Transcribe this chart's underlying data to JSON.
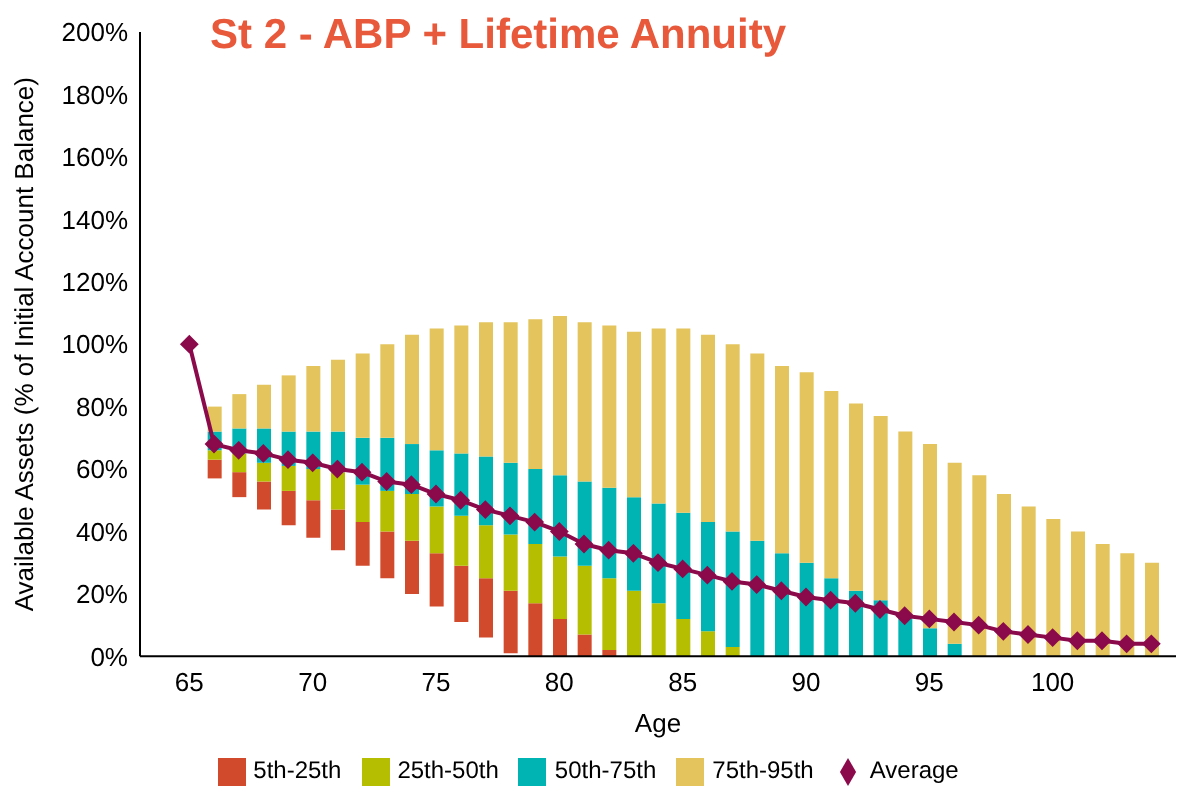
{
  "chart_data": {
    "type": "bar",
    "title": "St 2 - ABP + Lifetime Annuity",
    "xlabel": "Age",
    "ylabel": "Available Assets (% of Initial Account Balance)",
    "x": [
      65,
      66,
      67,
      68,
      69,
      70,
      71,
      72,
      73,
      74,
      75,
      76,
      77,
      78,
      79,
      80,
      81,
      82,
      83,
      84,
      85,
      86,
      87,
      88,
      89,
      90,
      91,
      92,
      93,
      94,
      95,
      96,
      97,
      98,
      99,
      100,
      101,
      102,
      103,
      104
    ],
    "series": [
      {
        "name": "5th-25th",
        "color": "#d24a2c",
        "base": [
          null,
          57,
          51,
          47,
          42,
          38,
          34,
          29,
          25,
          20,
          16,
          11,
          6,
          1,
          0,
          0,
          0,
          0,
          null,
          null,
          null,
          null,
          null,
          null,
          null,
          null,
          null,
          null,
          null,
          null,
          null,
          null,
          null,
          null,
          null,
          null,
          null,
          null,
          null,
          null
        ],
        "values": [
          null,
          6,
          8,
          9,
          11,
          12,
          13,
          14,
          15,
          17,
          17,
          18,
          19,
          20,
          17,
          12,
          7,
          2,
          null,
          null,
          null,
          null,
          null,
          null,
          null,
          null,
          null,
          null,
          null,
          null,
          null,
          null,
          null,
          null,
          null,
          null,
          null,
          null,
          null,
          null
        ]
      },
      {
        "name": "25th-50th",
        "color": "#b5be00",
        "base": [
          null,
          63,
          59,
          56,
          53,
          50,
          47,
          43,
          40,
          37,
          33,
          29,
          25,
          21,
          17,
          12,
          7,
          2,
          0,
          0,
          0,
          0,
          0,
          null,
          null,
          null,
          null,
          null,
          null,
          null,
          null,
          null,
          null,
          null,
          null,
          null,
          null,
          null,
          null,
          null
        ],
        "values": [
          null,
          3,
          6,
          6,
          8,
          10,
          12,
          12,
          13,
          15,
          15,
          16,
          17,
          18,
          19,
          20,
          22,
          23,
          21,
          17,
          12,
          8,
          3,
          null,
          null,
          null,
          null,
          null,
          null,
          null,
          null,
          null,
          null,
          null,
          null,
          null,
          null,
          null,
          null,
          null
        ]
      },
      {
        "name": "50th-75th",
        "color": "#00b4b4",
        "base": [
          null,
          66,
          65,
          62,
          61,
          60,
          59,
          55,
          53,
          52,
          48,
          45,
          42,
          39,
          36,
          32,
          29,
          25,
          21,
          17,
          12,
          8,
          3,
          0,
          0,
          0,
          0,
          0,
          0,
          0,
          0,
          0,
          null,
          null,
          null,
          null,
          null,
          null,
          null,
          null
        ],
        "values": [
          null,
          6,
          8,
          11,
          11,
          12,
          13,
          15,
          17,
          16,
          18,
          20,
          22,
          23,
          24,
          26,
          27,
          29,
          30,
          32,
          34,
          35,
          37,
          37,
          33,
          30,
          25,
          21,
          18,
          13,
          9,
          4,
          null,
          null,
          null,
          null,
          null,
          null,
          null,
          null
        ]
      },
      {
        "name": "75th-95th",
        "color": "#e4c45c",
        "base": [
          null,
          72,
          73,
          73,
          72,
          72,
          72,
          70,
          70,
          68,
          66,
          65,
          64,
          62,
          60,
          58,
          56,
          54,
          51,
          49,
          46,
          43,
          40,
          37,
          33,
          30,
          25,
          21,
          18,
          13,
          9,
          4,
          0,
          0,
          0,
          0,
          0,
          0,
          0,
          0
        ],
        "values": [
          null,
          8,
          11,
          14,
          18,
          21,
          23,
          27,
          30,
          35,
          39,
          41,
          43,
          45,
          48,
          51,
          51,
          52,
          53,
          56,
          59,
          60,
          60,
          60,
          60,
          61,
          60,
          60,
          59,
          59,
          59,
          58,
          58,
          52,
          48,
          44,
          40,
          36,
          33,
          30
        ]
      },
      {
        "name": "Average",
        "type": "line",
        "color": "#8b0a4b",
        "marker": "diamond",
        "values": [
          100,
          68,
          66,
          65,
          63,
          62,
          60,
          59,
          56,
          55,
          52,
          50,
          47,
          45,
          43,
          40,
          36,
          34,
          33,
          30,
          28,
          26,
          24,
          23,
          21,
          19,
          18,
          17,
          15,
          13,
          12,
          11,
          10,
          8,
          7,
          6,
          5,
          5,
          4,
          4
        ]
      }
    ],
    "xlim": [
      63,
      105
    ],
    "xticks": [
      65,
      70,
      75,
      80,
      85,
      90,
      95,
      100
    ],
    "ylim": [
      0,
      200
    ],
    "yticks": [
      {
        "value": 0,
        "label": "0%"
      },
      {
        "value": 20,
        "label": "20%"
      },
      {
        "value": 40,
        "label": "40%"
      },
      {
        "value": 60,
        "label": "60%"
      },
      {
        "value": 80,
        "label": "80%"
      },
      {
        "value": 100,
        "label": "100%"
      },
      {
        "value": 120,
        "label": "120%"
      },
      {
        "value": 140,
        "label": "140%"
      },
      {
        "value": 160,
        "label": "160%"
      },
      {
        "value": 180,
        "label": "180%"
      },
      {
        "value": 200,
        "label": "200%"
      }
    ],
    "grid": false,
    "legend": "bottom"
  }
}
